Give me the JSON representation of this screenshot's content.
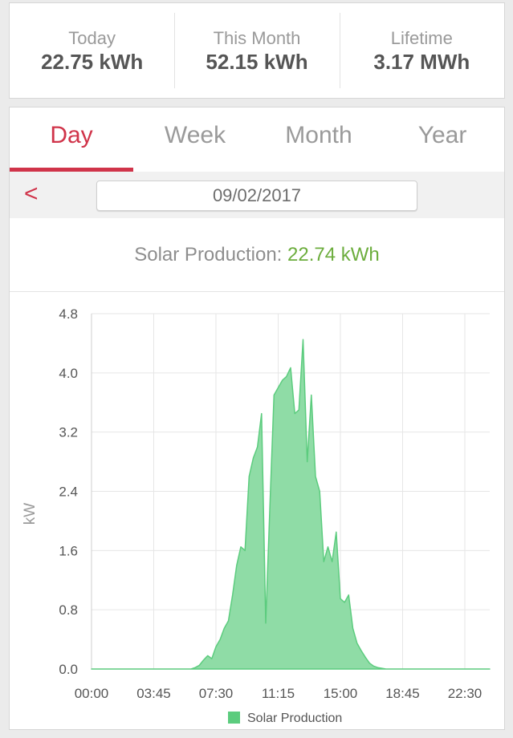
{
  "stats": [
    {
      "label": "Today",
      "value": "22.75 kWh"
    },
    {
      "label": "This Month",
      "value": "52.15 kWh"
    },
    {
      "label": "Lifetime",
      "value": "3.17 MWh"
    }
  ],
  "tabs": [
    {
      "label": "Day",
      "active": true
    },
    {
      "label": "Week",
      "active": false
    },
    {
      "label": "Month",
      "active": false
    },
    {
      "label": "Year",
      "active": false
    }
  ],
  "date_nav": {
    "prev_symbol": "<",
    "date": "09/02/2017"
  },
  "summary": {
    "label": "Solar Production: ",
    "value": "22.74 kWh"
  },
  "colors": {
    "accent": "#d0344a",
    "production": "#6cad3d",
    "area_fill": "#8fdca6",
    "area_line": "#5ccc7e"
  },
  "chart_data": {
    "type": "area",
    "ylabel": "kW",
    "ylim": [
      0,
      4.8
    ],
    "yticks": [
      0.0,
      0.8,
      1.6,
      2.4,
      3.2,
      4.0,
      4.8
    ],
    "ytick_labels": [
      "0.0",
      "0.8",
      "1.6",
      "2.4",
      "3.2",
      "4.0",
      "4.8"
    ],
    "xlim": [
      0,
      24
    ],
    "xticks": [
      0,
      3.75,
      7.5,
      11.25,
      15,
      18.75,
      22.5
    ],
    "xtick_labels": [
      "00:00",
      "03:45",
      "07:30",
      "11:15",
      "15:00",
      "18:45",
      "22:30"
    ],
    "grid": true,
    "legend_position": "bottom-center",
    "series": [
      {
        "name": "Solar Production",
        "x": [
          0,
          6.0,
          6.25,
          6.5,
          6.75,
          7.0,
          7.25,
          7.5,
          7.75,
          8.0,
          8.25,
          8.5,
          8.75,
          9.0,
          9.25,
          9.5,
          9.75,
          10.0,
          10.25,
          10.5,
          10.75,
          11.0,
          11.25,
          11.5,
          11.75,
          12.0,
          12.25,
          12.5,
          12.75,
          13.0,
          13.25,
          13.5,
          13.75,
          14.0,
          14.25,
          14.5,
          14.75,
          15.0,
          15.25,
          15.5,
          15.75,
          16.0,
          16.25,
          16.5,
          16.75,
          17.0,
          17.25,
          17.5,
          17.75,
          18.0,
          18.25,
          18.5,
          18.75,
          19.0,
          24
        ],
        "values": [
          0,
          0,
          0.02,
          0.05,
          0.12,
          0.18,
          0.14,
          0.3,
          0.4,
          0.55,
          0.65,
          1.0,
          1.4,
          1.65,
          1.6,
          2.6,
          2.85,
          3.0,
          3.45,
          0.62,
          2.2,
          3.7,
          3.8,
          3.9,
          3.95,
          4.07,
          3.45,
          3.5,
          4.45,
          2.8,
          3.7,
          2.6,
          2.4,
          1.45,
          1.65,
          1.45,
          1.85,
          0.95,
          0.9,
          1.0,
          0.55,
          0.35,
          0.25,
          0.16,
          0.08,
          0.04,
          0.02,
          0.01,
          0,
          0,
          0,
          0,
          0,
          0,
          0
        ]
      }
    ]
  }
}
